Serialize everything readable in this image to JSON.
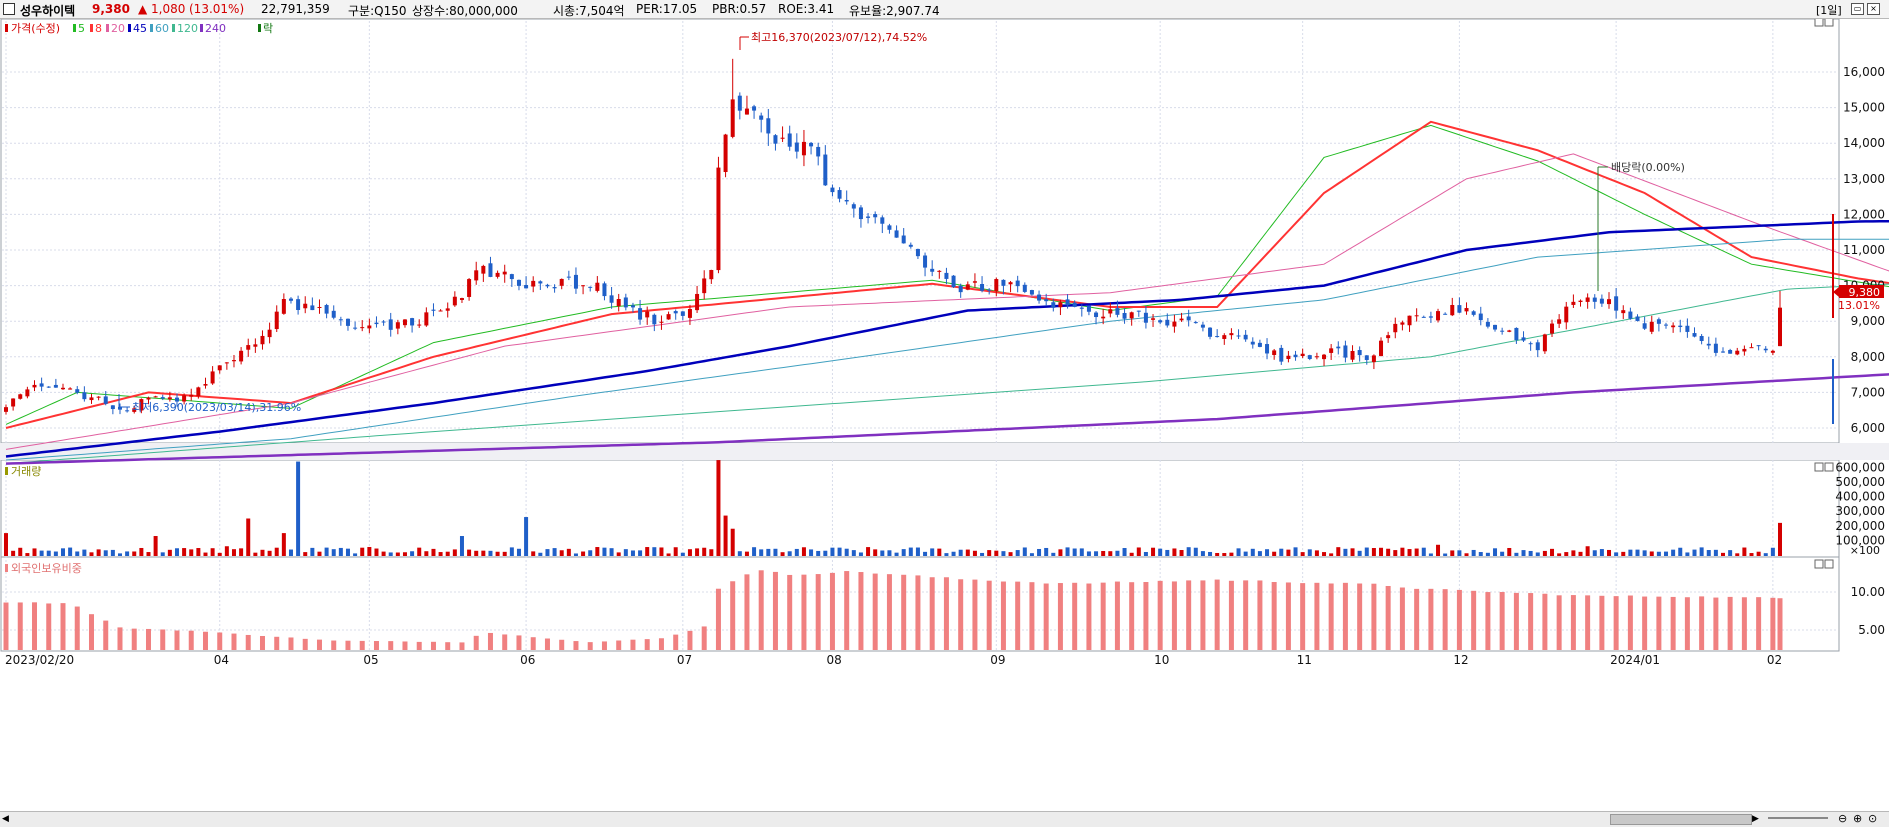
{
  "header": {
    "stock_name": "성우하이텍",
    "price": "9,380",
    "change": "▲ 1,080",
    "change_pct": "(13.01%)",
    "volume": "22,791,359",
    "market": "구분:Q150",
    "listed_shares": "상장수:80,000,000",
    "market_cap": "시총:7,504억",
    "per": "PER:17.05",
    "pbr": "PBR:0.57",
    "roe": "ROE:3.41",
    "float_ratio": "유보율:2,907.74",
    "period_button": "[1일]"
  },
  "colors": {
    "up": "#d40000",
    "down": "#1f5fc8",
    "ma5": "#22bb22",
    "ma8": "#ff3333",
    "ma20": "#e060a0",
    "ma45": "#0000bb",
    "ma60": "#40a0c0",
    "ma120": "#40b890",
    "ma240": "#8030c0",
    "foreign": "#f08080",
    "grid": "#d8dcea"
  },
  "legend": {
    "price": "가격(수정)",
    "ma5": "5",
    "ma8": "8",
    "ma20": "20",
    "ma45": "45",
    "ma60": "60",
    "ma120": "120",
    "ma240": "240",
    "down_label": "락"
  },
  "annotations": {
    "high": "최고16,370(2023/07/12),74.52%",
    "low": "최저6,390(2023/03/14),31.96%",
    "dividend": "배당락(0.00%)",
    "last_price": "9,380",
    "last_pct": "13.01%"
  },
  "panels": {
    "volume_title": "거래량",
    "foreign_title": "외국인보유비중",
    "volume_unit": "×100"
  },
  "chart_data": [
    {
      "type": "candlestick",
      "title": "가격(수정)",
      "ylim": [
        5000,
        16500
      ],
      "yticks": [
        "6,000",
        "7,000",
        "8,000",
        "9,000",
        "10,000",
        "11,000",
        "12,000",
        "13,000",
        "14,000",
        "15,000",
        "16,000"
      ],
      "xticks": [
        "2023/02/20",
        "04",
        "05",
        "06",
        "07",
        "08",
        "09",
        "10",
        "11",
        "12",
        "2024/01",
        "02"
      ],
      "anchors": [
        [
          "2023/02/20",
          6600
        ],
        [
          "2023/02/24",
          7200
        ],
        [
          "2023/03/03",
          7000
        ],
        [
          "2023/03/10",
          6750
        ],
        [
          "2023/03/14",
          6500
        ],
        [
          "2023/03/21",
          6850
        ],
        [
          "2023/03/24",
          6700
        ],
        [
          "2023/03/31",
          7500
        ],
        [
          "2023/04/07",
          8200
        ],
        [
          "2023/04/11",
          8500
        ],
        [
          "2023/04/14",
          9600
        ],
        [
          "2023/04/21",
          9300
        ],
        [
          "2023/04/28",
          8800
        ],
        [
          "2023/05/05",
          8900
        ],
        [
          "2023/05/12",
          9100
        ],
        [
          "2023/05/19",
          9800
        ],
        [
          "2023/05/24",
          10500
        ],
        [
          "2023/05/31",
          10100
        ],
        [
          "2023/06/07",
          10050
        ],
        [
          "2023/06/14",
          10100
        ],
        [
          "2023/06/21",
          9300
        ],
        [
          "2023/06/28",
          9000
        ],
        [
          "2023/07/03",
          9300
        ],
        [
          "2023/07/05",
          9700
        ],
        [
          "2023/07/07",
          10600
        ],
        [
          "2023/07/10",
          13200
        ],
        [
          "2023/07/12",
          15000
        ],
        [
          "2023/07/18",
          14600
        ],
        [
          "2023/07/24",
          13700
        ],
        [
          "2023/07/27",
          14000
        ],
        [
          "2023/08/01",
          12500
        ],
        [
          "2023/08/09",
          11800
        ],
        [
          "2023/08/17",
          10800
        ],
        [
          "2023/08/24",
          10000
        ],
        [
          "2023/08/31",
          9950
        ],
        [
          "2023/09/05",
          10200
        ],
        [
          "2023/09/12",
          9500
        ],
        [
          "2023/09/19",
          9200
        ],
        [
          "2023/09/26",
          9200
        ],
        [
          "2023/10/06",
          9000
        ],
        [
          "2023/10/13",
          8700
        ],
        [
          "2023/10/20",
          8400
        ],
        [
          "2023/10/27",
          8000
        ],
        [
          "2023/11/03",
          8100
        ],
        [
          "2023/11/10",
          8100
        ],
        [
          "2023/11/14",
          7800
        ],
        [
          "2023/11/20",
          9000
        ],
        [
          "2023/11/28",
          9200
        ],
        [
          "2023/12/04",
          9400
        ],
        [
          "2023/12/11",
          8700
        ],
        [
          "2023/12/18",
          8300
        ],
        [
          "2023/12/22",
          9300
        ],
        [
          "2023/12/27",
          9650
        ],
        [
          "2024/01/02",
          9400
        ],
        [
          "2024/01/08",
          8900
        ],
        [
          "2024/01/15",
          8700
        ],
        [
          "2024/01/22",
          8200
        ],
        [
          "2024/01/26",
          8150
        ],
        [
          "2024/01/31",
          8300
        ],
        [
          "2024/02/01",
          8300
        ],
        [
          "2024/02/02",
          9380
        ]
      ],
      "high": {
        "date": "2023/07/12",
        "value": 16370
      },
      "low": {
        "date": "2023/03/14",
        "value": 6390
      },
      "moving_averages": {
        "ma5": [
          [
            0,
            6100
          ],
          [
            10,
            7000
          ],
          [
            40,
            6550
          ],
          [
            60,
            8400
          ],
          [
            85,
            9400
          ],
          [
            130,
            10150
          ],
          [
            155,
            9300
          ],
          [
            170,
            9700
          ],
          [
            185,
            13600
          ],
          [
            200,
            14500
          ],
          [
            215,
            13500
          ],
          [
            230,
            12000
          ],
          [
            245,
            10600
          ],
          [
            260,
            10100
          ],
          [
            280,
            9500
          ],
          [
            300,
            9100
          ],
          [
            325,
            8500
          ],
          [
            345,
            8000
          ],
          [
            365,
            8500
          ],
          [
            385,
            9000
          ],
          [
            405,
            8600
          ],
          [
            420,
            8400
          ],
          [
            440,
            9400
          ],
          [
            455,
            9300
          ],
          [
            475,
            8500
          ],
          [
            490,
            8100
          ],
          [
            500,
            8200
          ],
          [
            505,
            8600
          ]
        ],
        "ma8": [
          [
            0,
            6000
          ],
          [
            20,
            7000
          ],
          [
            40,
            6700
          ],
          [
            60,
            8000
          ],
          [
            85,
            9200
          ],
          [
            130,
            10050
          ],
          [
            155,
            9400
          ],
          [
            170,
            9400
          ],
          [
            185,
            12600
          ],
          [
            200,
            14600
          ],
          [
            215,
            13800
          ],
          [
            230,
            12600
          ],
          [
            245,
            10800
          ],
          [
            260,
            10200
          ],
          [
            280,
            9600
          ],
          [
            300,
            9200
          ],
          [
            325,
            8600
          ],
          [
            345,
            8000
          ],
          [
            365,
            8300
          ],
          [
            385,
            9100
          ],
          [
            405,
            8700
          ],
          [
            420,
            8400
          ],
          [
            440,
            9300
          ],
          [
            455,
            9400
          ],
          [
            475,
            8700
          ],
          [
            490,
            8200
          ],
          [
            505,
            8300
          ]
        ],
        "ma20": [
          [
            0,
            5400
          ],
          [
            40,
            6700
          ],
          [
            70,
            8300
          ],
          [
            110,
            9400
          ],
          [
            155,
            9800
          ],
          [
            185,
            10600
          ],
          [
            205,
            13000
          ],
          [
            220,
            13700
          ],
          [
            245,
            11800
          ],
          [
            270,
            10000
          ],
          [
            295,
            9400
          ],
          [
            325,
            8900
          ],
          [
            350,
            8300
          ],
          [
            380,
            8300
          ],
          [
            420,
            8650
          ],
          [
            450,
            8950
          ],
          [
            480,
            8700
          ],
          [
            505,
            8600
          ]
        ],
        "ma45": [
          [
            0,
            5200
          ],
          [
            30,
            5900
          ],
          [
            60,
            6700
          ],
          [
            90,
            7600
          ],
          [
            110,
            8300
          ],
          [
            135,
            9300
          ],
          [
            165,
            9600
          ],
          [
            185,
            10000
          ],
          [
            205,
            11000
          ],
          [
            225,
            11500
          ],
          [
            260,
            11800
          ],
          [
            285,
            11850
          ],
          [
            300,
            11600
          ],
          [
            320,
            10800
          ],
          [
            345,
            10000
          ],
          [
            370,
            9350
          ],
          [
            395,
            8750
          ],
          [
            420,
            8500
          ],
          [
            460,
            8700
          ],
          [
            490,
            8800
          ],
          [
            505,
            8700
          ]
        ],
        "ma60": [
          [
            0,
            5100
          ],
          [
            40,
            5700
          ],
          [
            80,
            6900
          ],
          [
            120,
            8000
          ],
          [
            155,
            9000
          ],
          [
            185,
            9600
          ],
          [
            215,
            10800
          ],
          [
            250,
            11300
          ],
          [
            290,
            11300
          ],
          [
            320,
            11300
          ],
          [
            350,
            10700
          ],
          [
            380,
            9700
          ],
          [
            410,
            9000
          ],
          [
            440,
            8800
          ],
          [
            470,
            8700
          ],
          [
            505,
            8550
          ]
        ],
        "ma120": [
          [
            0,
            5000
          ],
          [
            60,
            5900
          ],
          [
            110,
            6600
          ],
          [
            160,
            7300
          ],
          [
            200,
            8000
          ],
          [
            250,
            9900
          ],
          [
            290,
            10300
          ],
          [
            330,
            10350
          ],
          [
            380,
            10200
          ],
          [
            430,
            10000
          ],
          [
            455,
            9800
          ],
          [
            505,
            9000
          ]
        ],
        "ma240": [
          [
            0,
            5000
          ],
          [
            100,
            5600
          ],
          [
            170,
            6250
          ],
          [
            220,
            7000
          ],
          [
            290,
            7800
          ],
          [
            360,
            8300
          ],
          [
            420,
            8500
          ],
          [
            470,
            8900
          ],
          [
            505,
            9000
          ]
        ]
      }
    },
    {
      "type": "bar",
      "title": "거래량",
      "yticks": [
        "100",
        "200,000",
        "300,000",
        "400,000",
        "500,000",
        "600,000"
      ],
      "ylim": [
        0,
        700000
      ],
      "spikes": [
        [
          "2023/02/20",
          150000
        ],
        [
          "2023/03/21",
          130000
        ],
        [
          "2023/04/04",
          60000
        ],
        [
          "2023/04/07",
          250000
        ],
        [
          "2023/04/14",
          150000
        ],
        [
          "2023/04/18",
          640000
        ],
        [
          "2023/05/19",
          130000
        ],
        [
          "2023/06/01",
          260000
        ],
        [
          "2023/07/10",
          650000
        ],
        [
          "2023/07/11",
          270000
        ],
        [
          "2023/07/12",
          180000
        ],
        [
          "2023/11/28",
          70000
        ],
        [
          "2023/12/27",
          60000
        ],
        [
          "2024/02/02",
          220000
        ]
      ]
    },
    {
      "type": "bar",
      "title": "외국인보유비중",
      "yticks": [
        "5.00",
        "10.00"
      ],
      "ylim": [
        2,
        14
      ],
      "anchors": [
        [
          "2023/02/20",
          8.7
        ],
        [
          "2023/03/03",
          8.5
        ],
        [
          "2023/03/14",
          5.3
        ],
        [
          "2023/03/28",
          4.9
        ],
        [
          "2023/04/25",
          3.6
        ],
        [
          "2023/05/19",
          3.4
        ],
        [
          "2023/05/24",
          4.7
        ],
        [
          "2023/06/14",
          3.4
        ],
        [
          "2023/06/28",
          3.9
        ],
        [
          "2023/07/07",
          5.7
        ],
        [
          "2023/07/10",
          10.5
        ],
        [
          "2023/07/17",
          12.9
        ],
        [
          "2023/07/24",
          12.3
        ],
        [
          "2023/08/04",
          12.7
        ],
        [
          "2023/08/25",
          11.7
        ],
        [
          "2023/09/15",
          11.1
        ],
        [
          "2023/10/16",
          11.6
        ],
        [
          "2023/11/15",
          11.0
        ],
        [
          "2023/11/24",
          10.4
        ],
        [
          "2023/12/27",
          9.5
        ],
        [
          "2024/01/16",
          9.4
        ],
        [
          "2024/02/02",
          9.2
        ]
      ]
    }
  ]
}
